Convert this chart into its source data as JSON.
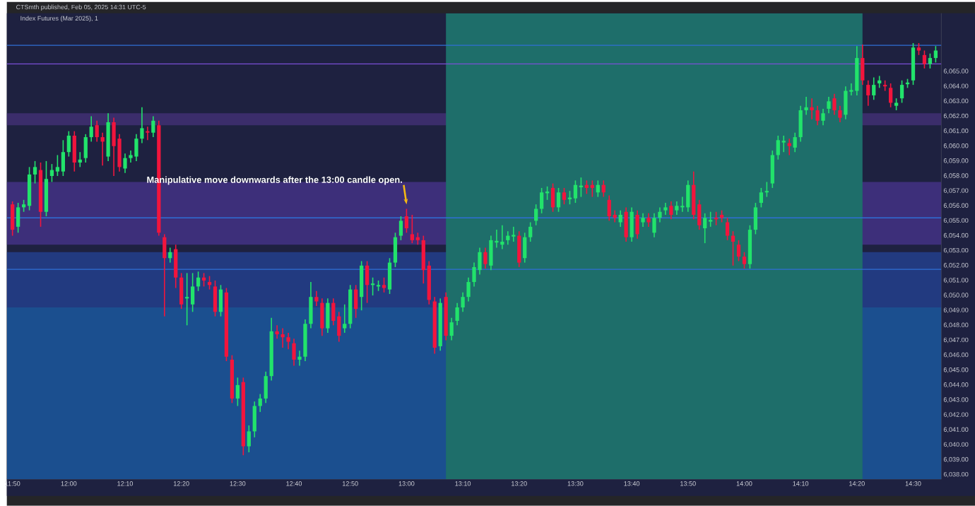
{
  "chart_data": {
    "type": "candlestick",
    "title": "CTSmth published, Feb 05, 2025 14:31 UTC-5",
    "subtitle": "Index Futures (Mar 2025), 1",
    "annotations": [
      {
        "text": "Manipulative move downwards after the 13:00 candle open.",
        "x": "2025-02-05T13:00",
        "y": 6055.8
      }
    ],
    "colors": [
      "#f2153d",
      "#22e36b",
      "#22e36b",
      "#22e36b",
      "#22e36b",
      "#f2153d",
      "#22e36b",
      "#22e36b",
      "#22e36b",
      "#22e36b",
      "#22e36b",
      "#f2153d",
      "#22e36b",
      "#22e36b",
      "#22e36b",
      "#f2153d",
      "#f2153d",
      "#22e36b",
      "#f2153d",
      "#f2153d",
      "#22e36b",
      "#22e36b",
      "#22e36b",
      "#22e36b",
      "#f2153d",
      "#22e36b",
      "#f2153d",
      "#f2153d",
      "#22e36b",
      "#f2153d",
      "#f2153d",
      "#22e36b",
      "#22e36b",
      "#22e36b",
      "#f2153d",
      "#f2153d",
      "#f2153d",
      "#22e36b",
      "#f2153d",
      "#f2153d",
      "#22e36b",
      "#f2153d",
      "#22e36b",
      "#22e36b",
      "#22e36b",
      "#22e36b",
      "#22e36b",
      "#f2153d",
      "#f2153d",
      "#f2153d",
      "#f2153d",
      "#22e36b",
      "#22e36b",
      "#22e36b",
      "#f2153d",
      "#f2153d",
      "#22e36b",
      "#f2153d",
      "#f2153d",
      "#22e36b",
      "#22e36b",
      "#f2153d",
      "#22e36b",
      "#f2153d",
      "#22e36b",
      "#22e36b",
      "#f2153d",
      "#22e36b",
      "#22e36b",
      "#22e36b",
      "#f2153d",
      "#f2153d",
      "#f2153d",
      "#f2153d",
      "#f2153d",
      "#f2153d",
      "#22e36b",
      "#f2153d",
      "#22e36b",
      "#22e36b",
      "#22e36b",
      "#22e36b",
      "#22e36b",
      "#22e36b",
      "#f2153d",
      "#22e36b",
      "#22e36b",
      "#22e36b",
      "#22e36b",
      "#22e36b",
      "#f2153d",
      "#22e36b",
      "#22e36b",
      "#22e36b",
      "#22e36b",
      "#22e36b",
      "#f2153d",
      "#22e36b",
      "#f2153d",
      "#22e36b",
      "#22e36b",
      "#22e36b",
      "#f2153d",
      "#f2153d",
      "#22e36b",
      "#f2153d",
      "#f2153d",
      "#f2153d",
      "#22e36b",
      "#f2153d",
      "#22e36b",
      "#f2153d",
      "#22e36b",
      "#f2153d",
      "#22e36b",
      "#22e36b",
      "#22e36b",
      "#f2153d",
      "#22e36b",
      "#22e36b",
      "#22e36b",
      "#f2153d",
      "#f2153d",
      "#22e36b",
      "#22e36b",
      "#f2153d",
      "#f2153d",
      "#f2153d",
      "#f2153d",
      "#f2153d",
      "#f2153d",
      "#22e36b",
      "#22e36b",
      "#22e36b",
      "#22e36b",
      "#22e36b",
      "#22e36b",
      "#22e36b",
      "#f2153d",
      "#22e36b",
      "#22e36b",
      "#22e36b",
      "#f2153d",
      "#f2153d",
      "#22e36b",
      "#22e36b",
      "#f2153d",
      "#f2153d",
      "#22e36b",
      "#22e36b",
      "#22e36b",
      "#f2153d",
      "#f2153d",
      "#22e36b",
      "#22e36b",
      "#f2153d",
      "#f2153d",
      "#22e36b",
      "#22e36b",
      "#22e36b",
      "#22e36b",
      "#f2153d",
      "#f2153d",
      "#22e36b",
      "#22e36b"
    ],
    "xlim": [
      "2025-02-05T11:49",
      "2025-02-05T14:35"
    ],
    "xticks": [
      {
        "value": "2025-02-05T11:50",
        "label": "11:50"
      },
      {
        "value": "2025-02-05T12:00",
        "label": "12:00"
      },
      {
        "value": "2025-02-05T12:10",
        "label": "12:10"
      },
      {
        "value": "2025-02-05T12:20",
        "label": "12:20"
      },
      {
        "value": "2025-02-05T12:30",
        "label": "12:30"
      },
      {
        "value": "2025-02-05T12:40",
        "label": "12:40"
      },
      {
        "value": "2025-02-05T12:50",
        "label": "12:50"
      },
      {
        "value": "2025-02-05T13:00",
        "label": "13:00"
      },
      {
        "value": "2025-02-05T13:10",
        "label": "13:10"
      },
      {
        "value": "2025-02-05T13:20",
        "label": "13:20"
      },
      {
        "value": "2025-02-05T13:30",
        "label": "13:30"
      },
      {
        "value": "2025-02-05T13:40",
        "label": "13:40"
      },
      {
        "value": "2025-02-05T13:50",
        "label": "13:50"
      },
      {
        "value": "2025-02-05T14:00",
        "label": "14:00"
      },
      {
        "value": "2025-02-05T14:10",
        "label": "14:10"
      },
      {
        "value": "2025-02-05T14:20",
        "label": "14:20"
      },
      {
        "value": "2025-02-05T14:30",
        "label": "14:30"
      }
    ],
    "ylim": [
      6037.7,
      6068.9
    ],
    "yticks": [
      {
        "value": 6038,
        "label": "6,038.00"
      },
      {
        "value": 6039,
        "label": "6,039.00"
      },
      {
        "value": 6040,
        "label": "6,040.00"
      },
      {
        "value": 6041,
        "label": "6,041.00"
      },
      {
        "value": 6042,
        "label": "6,042.00"
      },
      {
        "value": 6043,
        "label": "6,043.00"
      },
      {
        "value": 6044,
        "label": "6,044.00"
      },
      {
        "value": 6045,
        "label": "6,045.00"
      },
      {
        "value": 6046,
        "label": "6,046.00"
      },
      {
        "value": 6047,
        "label": "6,047.00"
      },
      {
        "value": 6048,
        "label": "6,048.00"
      },
      {
        "value": 6049,
        "label": "6,049.00"
      },
      {
        "value": 6050,
        "label": "6,050.00"
      },
      {
        "value": 6051,
        "label": "6,051.00"
      },
      {
        "value": 6052,
        "label": "6,052.00"
      },
      {
        "value": 6053,
        "label": "6,053.00"
      },
      {
        "value": 6054,
        "label": "6,054.00"
      },
      {
        "value": 6055,
        "label": "6,055.00"
      },
      {
        "value": 6056,
        "label": "6,056.00"
      },
      {
        "value": 6057,
        "label": "6,057.00"
      },
      {
        "value": 6058,
        "label": "6,058.00"
      },
      {
        "value": 6059,
        "label": "6,059.00"
      },
      {
        "value": 6060,
        "label": "6,060.00"
      },
      {
        "value": 6061,
        "label": "6,061.00"
      },
      {
        "value": 6062,
        "label": "6,062.00"
      },
      {
        "value": 6063,
        "label": "6,063.00"
      },
      {
        "value": 6064,
        "label": "6,064.00"
      },
      {
        "value": 6065,
        "label": "6,065.00"
      }
    ],
    "bands": [
      {
        "axis": "y",
        "from": 6037.7,
        "to": 6049.2,
        "color": "#1b4f8f"
      },
      {
        "axis": "y",
        "from": 6049.2,
        "to": 6052.9,
        "color": "#223a80"
      },
      {
        "axis": "y",
        "from": 6053.4,
        "to": 6057.6,
        "color": "#3d2f7a"
      },
      {
        "axis": "y",
        "from": 6061.4,
        "to": 6062.2,
        "color": "#3b2d6b"
      },
      {
        "axis": "x",
        "from": "2025-02-05T13:07",
        "to": "2025-02-05T14:21",
        "color": "#1e6e6a"
      }
    ],
    "ref_lines": [
      {
        "axis": "y",
        "value": 6066.75,
        "color": "#2f6fd6"
      },
      {
        "axis": "y",
        "value": 6065.5,
        "color": "#7a4fd6"
      },
      {
        "axis": "y",
        "value": 6055.2,
        "color": "#2f6fd6"
      },
      {
        "axis": "y",
        "value": 6051.75,
        "color": "#2f6fd6"
      }
    ],
    "x": [
      "2025-02-05T11:50",
      "2025-02-05T11:51",
      "2025-02-05T11:52",
      "2025-02-05T11:53",
      "2025-02-05T11:54",
      "2025-02-05T11:55",
      "2025-02-05T11:56",
      "2025-02-05T11:57",
      "2025-02-05T11:58",
      "2025-02-05T11:59",
      "2025-02-05T12:00",
      "2025-02-05T12:01",
      "2025-02-05T12:02",
      "2025-02-05T12:03",
      "2025-02-05T12:04",
      "2025-02-05T12:05",
      "2025-02-05T12:06",
      "2025-02-05T12:07",
      "2025-02-05T12:08",
      "2025-02-05T12:09",
      "2025-02-05T12:10",
      "2025-02-05T12:11",
      "2025-02-05T12:12",
      "2025-02-05T12:13",
      "2025-02-05T12:14",
      "2025-02-05T12:15",
      "2025-02-05T12:16",
      "2025-02-05T12:17",
      "2025-02-05T12:18",
      "2025-02-05T12:19",
      "2025-02-05T12:20",
      "2025-02-05T12:21",
      "2025-02-05T12:22",
      "2025-02-05T12:23",
      "2025-02-05T12:24",
      "2025-02-05T12:25",
      "2025-02-05T12:26",
      "2025-02-05T12:27",
      "2025-02-05T12:28",
      "2025-02-05T12:29",
      "2025-02-05T12:30",
      "2025-02-05T12:31",
      "2025-02-05T12:32",
      "2025-02-05T12:33",
      "2025-02-05T12:34",
      "2025-02-05T12:35",
      "2025-02-05T12:36",
      "2025-02-05T12:37",
      "2025-02-05T12:38",
      "2025-02-05T12:39",
      "2025-02-05T12:40",
      "2025-02-05T12:41",
      "2025-02-05T12:42",
      "2025-02-05T12:43",
      "2025-02-05T12:44",
      "2025-02-05T12:45",
      "2025-02-05T12:46",
      "2025-02-05T12:47",
      "2025-02-05T12:48",
      "2025-02-05T12:49",
      "2025-02-05T12:50",
      "2025-02-05T12:51",
      "2025-02-05T12:52",
      "2025-02-05T12:53",
      "2025-02-05T12:54",
      "2025-02-05T12:55",
      "2025-02-05T12:56",
      "2025-02-05T12:57",
      "2025-02-05T12:58",
      "2025-02-05T12:59",
      "2025-02-05T13:00",
      "2025-02-05T13:01",
      "2025-02-05T13:02",
      "2025-02-05T13:03",
      "2025-02-05T13:04",
      "2025-02-05T13:05",
      "2025-02-05T13:06",
      "2025-02-05T13:07",
      "2025-02-05T13:08",
      "2025-02-05T13:09",
      "2025-02-05T13:10",
      "2025-02-05T13:11",
      "2025-02-05T13:12",
      "2025-02-05T13:13",
      "2025-02-05T13:14",
      "2025-02-05T13:15",
      "2025-02-05T13:16",
      "2025-02-05T13:17",
      "2025-02-05T13:18",
      "2025-02-05T13:19",
      "2025-02-05T13:20",
      "2025-02-05T13:21",
      "2025-02-05T13:22",
      "2025-02-05T13:23",
      "2025-02-05T13:24",
      "2025-02-05T13:25",
      "2025-02-05T13:26",
      "2025-02-05T13:27",
      "2025-02-05T13:28",
      "2025-02-05T13:29",
      "2025-02-05T13:30",
      "2025-02-05T13:31",
      "2025-02-05T13:32",
      "2025-02-05T13:33",
      "2025-02-05T13:34",
      "2025-02-05T13:35",
      "2025-02-05T13:36",
      "2025-02-05T13:37",
      "2025-02-05T13:38",
      "2025-02-05T13:39",
      "2025-02-05T13:40",
      "2025-02-05T13:41",
      "2025-02-05T13:42",
      "2025-02-05T13:43",
      "2025-02-05T13:44",
      "2025-02-05T13:45",
      "2025-02-05T13:46",
      "2025-02-05T13:47",
      "2025-02-05T13:48",
      "2025-02-05T13:49",
      "2025-02-05T13:50",
      "2025-02-05T13:51",
      "2025-02-05T13:52",
      "2025-02-05T13:53",
      "2025-02-05T13:54",
      "2025-02-05T13:55",
      "2025-02-05T13:56",
      "2025-02-05T13:57",
      "2025-02-05T13:58",
      "2025-02-05T13:59",
      "2025-02-05T14:00",
      "2025-02-05T14:01",
      "2025-02-05T14:02",
      "2025-02-05T14:03",
      "2025-02-05T14:04",
      "2025-02-05T14:05",
      "2025-02-05T14:06",
      "2025-02-05T14:07",
      "2025-02-05T14:08",
      "2025-02-05T14:09",
      "2025-02-05T14:10",
      "2025-02-05T14:11",
      "2025-02-05T14:12",
      "2025-02-05T14:13",
      "2025-02-05T14:14",
      "2025-02-05T14:15",
      "2025-02-05T14:16",
      "2025-02-05T14:17",
      "2025-02-05T14:18",
      "2025-02-05T14:19",
      "2025-02-05T14:20",
      "2025-02-05T14:21",
      "2025-02-05T14:22",
      "2025-02-05T14:23",
      "2025-02-05T14:24",
      "2025-02-05T14:25",
      "2025-02-05T14:26",
      "2025-02-05T14:27",
      "2025-02-05T14:28",
      "2025-02-05T14:29",
      "2025-02-05T14:30",
      "2025-02-05T14:31",
      "2025-02-05T14:32",
      "2025-02-05T14:33",
      "2025-02-05T14:34"
    ],
    "ohlc": [
      [
        6056.1,
        6056.3,
        6054.0,
        6054.4
      ],
      [
        6054.6,
        6056.2,
        6054.2,
        6055.9
      ],
      [
        6055.9,
        6056.4,
        6055.6,
        6056.1
      ],
      [
        6056.0,
        6058.6,
        6055.7,
        6058.1
      ],
      [
        6058.1,
        6059.0,
        6057.5,
        6058.6
      ],
      [
        6058.4,
        6058.9,
        6054.6,
        6055.6
      ],
      [
        6055.6,
        6059.0,
        6055.3,
        6057.8
      ],
      [
        6058.0,
        6058.8,
        6057.6,
        6058.4
      ],
      [
        6058.3,
        6059.4,
        6058.0,
        6058.6
      ],
      [
        6058.3,
        6060.4,
        6058.0,
        6059.6
      ],
      [
        6059.6,
        6061.0,
        6059.3,
        6060.7
      ],
      [
        6060.7,
        6061.0,
        6058.3,
        6058.9
      ],
      [
        6058.9,
        6059.6,
        6058.6,
        6059.1
      ],
      [
        6059.2,
        6060.8,
        6058.9,
        6060.6
      ],
      [
        6060.6,
        6062.0,
        6060.3,
        6061.3
      ],
      [
        6061.4,
        6061.7,
        6060.3,
        6060.6
      ],
      [
        6060.6,
        6060.9,
        6058.7,
        6060.3
      ],
      [
        6059.3,
        6062.2,
        6059.0,
        6061.6
      ],
      [
        6061.6,
        6061.9,
        6058.0,
        6060.0
      ],
      [
        6060.5,
        6060.8,
        6058.3,
        6058.6
      ],
      [
        6058.5,
        6059.5,
        6058.2,
        6059.2
      ],
      [
        6059.2,
        6059.7,
        6058.9,
        6059.4
      ],
      [
        6059.3,
        6060.8,
        6059.0,
        6060.5
      ],
      [
        6060.5,
        6062.6,
        6060.2,
        6061.2
      ],
      [
        6061.0,
        6061.3,
        6060.4,
        6060.9
      ],
      [
        6060.9,
        6062.0,
        6060.6,
        6061.7
      ],
      [
        6061.4,
        6061.7,
        6054.0,
        6054.2
      ],
      [
        6053.9,
        6054.1,
        6048.6,
        6052.5
      ],
      [
        6052.5,
        6053.2,
        6052.2,
        6052.9
      ],
      [
        6053.1,
        6053.4,
        6050.5,
        6051.2
      ],
      [
        6051.2,
        6051.5,
        6049.1,
        6049.4
      ],
      [
        6049.8,
        6051.5,
        6048.0,
        6049.9
      ],
      [
        6049.4,
        6051.5,
        6048.9,
        6050.6
      ],
      [
        6050.6,
        6051.6,
        6050.3,
        6051.2
      ],
      [
        6051.2,
        6051.5,
        6050.6,
        6051.0
      ],
      [
        6050.9,
        6051.3,
        6050.4,
        6050.7
      ],
      [
        6050.6,
        6051.0,
        6048.6,
        6048.9
      ],
      [
        6048.9,
        6050.7,
        6048.6,
        6050.4
      ],
      [
        6050.2,
        6050.5,
        6045.6,
        6045.9
      ],
      [
        6045.7,
        6046.0,
        6042.8,
        6043.1
      ],
      [
        6043.1,
        6044.5,
        6042.6,
        6044.0
      ],
      [
        6044.2,
        6044.5,
        6039.3,
        6039.9
      ],
      [
        6039.9,
        6041.3,
        6039.5,
        6040.9
      ],
      [
        6040.9,
        6042.9,
        6040.5,
        6042.6
      ],
      [
        6042.6,
        6043.4,
        6042.2,
        6043.1
      ],
      [
        6043.1,
        6044.9,
        6042.8,
        6044.6
      ],
      [
        6044.6,
        6048.5,
        6044.3,
        6047.6
      ],
      [
        6047.6,
        6048.0,
        6047.1,
        6047.4
      ],
      [
        6047.4,
        6047.8,
        6046.5,
        6047.2
      ],
      [
        6047.2,
        6047.5,
        6046.4,
        6046.9
      ],
      [
        6046.8,
        6047.1,
        6045.3,
        6045.7
      ],
      [
        6045.7,
        6046.3,
        6045.3,
        6045.9
      ],
      [
        6045.9,
        6048.4,
        6045.6,
        6048.1
      ],
      [
        6048.1,
        6050.9,
        6047.8,
        6049.9
      ],
      [
        6049.9,
        6050.3,
        6049.3,
        6049.6
      ],
      [
        6049.5,
        6049.8,
        6047.3,
        6047.8
      ],
      [
        6047.8,
        6049.8,
        6047.5,
        6049.5
      ],
      [
        6049.5,
        6049.8,
        6048.0,
        6048.3
      ],
      [
        6048.6,
        6048.9,
        6046.9,
        6047.3
      ],
      [
        6047.8,
        6049.4,
        6047.5,
        6048.1
      ],
      [
        6048.1,
        6050.7,
        6047.8,
        6050.4
      ],
      [
        6050.4,
        6050.7,
        6048.5,
        6049.1
      ],
      [
        6049.9,
        6052.3,
        6049.0,
        6052.0
      ],
      [
        6052.0,
        6052.3,
        6049.5,
        6050.7
      ],
      [
        6050.7,
        6051.2,
        6050.0,
        6050.8
      ],
      [
        6050.6,
        6051.0,
        6050.3,
        6050.7
      ],
      [
        6050.7,
        6051.2,
        6050.2,
        6050.5
      ],
      [
        6050.4,
        6052.5,
        6050.1,
        6052.2
      ],
      [
        6052.2,
        6054.2,
        6051.9,
        6053.9
      ],
      [
        6054.0,
        6055.3,
        6053.7,
        6055.0
      ],
      [
        6055.3,
        6055.8,
        6054.2,
        6054.5
      ],
      [
        6054.1,
        6055.4,
        6053.5,
        6053.7
      ],
      [
        6053.9,
        6054.2,
        6053.4,
        6053.7
      ],
      [
        6053.7,
        6054.0,
        6050.8,
        6051.7
      ],
      [
        6052.0,
        6052.3,
        6049.4,
        6049.7
      ],
      [
        6049.6,
        6049.9,
        6046.1,
        6046.5
      ],
      [
        6046.6,
        6049.8,
        6046.3,
        6049.5
      ],
      [
        6049.9,
        6050.2,
        6047.0,
        6047.3
      ],
      [
        6047.3,
        6048.5,
        6047.0,
        6048.2
      ],
      [
        6048.3,
        6049.5,
        6048.0,
        6049.2
      ],
      [
        6049.2,
        6050.2,
        6048.9,
        6049.9
      ],
      [
        6049.9,
        6051.2,
        6049.6,
        6050.9
      ],
      [
        6050.9,
        6052.2,
        6050.6,
        6051.9
      ],
      [
        6051.7,
        6053.2,
        6051.4,
        6052.9
      ],
      [
        6052.9,
        6053.2,
        6051.8,
        6052.1
      ],
      [
        6052.0,
        6054.0,
        6051.7,
        6053.7
      ],
      [
        6053.6,
        6054.4,
        6053.2,
        6053.6
      ],
      [
        6053.4,
        6054.7,
        6053.1,
        6053.6
      ],
      [
        6053.7,
        6054.3,
        6053.4,
        6054.0
      ],
      [
        6054.0,
        6054.6,
        6053.6,
        6054.0
      ],
      [
        6054.0,
        6054.3,
        6051.9,
        6052.2
      ],
      [
        6052.5,
        6054.2,
        6052.2,
        6053.9
      ],
      [
        6053.9,
        6054.9,
        6053.6,
        6054.6
      ],
      [
        6055.0,
        6056.1,
        6054.7,
        6055.8
      ],
      [
        6055.8,
        6057.2,
        6055.5,
        6056.9
      ],
      [
        6056.9,
        6057.3,
        6056.4,
        6056.9
      ],
      [
        6057.2,
        6057.5,
        6055.6,
        6055.9
      ],
      [
        6055.9,
        6057.2,
        6055.6,
        6056.9
      ],
      [
        6056.9,
        6057.2,
        6056.1,
        6056.4
      ],
      [
        6056.5,
        6057.0,
        6056.1,
        6056.5
      ],
      [
        6056.5,
        6057.7,
        6056.2,
        6057.4
      ],
      [
        6057.3,
        6057.9,
        6056.6,
        6057.3
      ],
      [
        6057.4,
        6057.7,
        6056.8,
        6057.2
      ],
      [
        6057.4,
        6057.7,
        6056.6,
        6057.2
      ],
      [
        6056.9,
        6057.7,
        6056.6,
        6057.4
      ],
      [
        6057.4,
        6057.7,
        6056.6,
        6056.9
      ],
      [
        6056.4,
        6056.7,
        6055.0,
        6055.3
      ],
      [
        6055.4,
        6055.7,
        6054.9,
        6055.2
      ],
      [
        6054.9,
        6055.7,
        6054.6,
        6055.4
      ],
      [
        6055.6,
        6055.9,
        6053.6,
        6053.9
      ],
      [
        6053.9,
        6055.9,
        6053.6,
        6055.6
      ],
      [
        6055.4,
        6055.7,
        6053.8,
        6054.1
      ],
      [
        6054.9,
        6055.5,
        6054.6,
        6055.2
      ],
      [
        6055.2,
        6055.5,
        6054.6,
        6054.9
      ],
      [
        6054.2,
        6055.5,
        6053.9,
        6055.2
      ],
      [
        6055.2,
        6055.9,
        6054.9,
        6055.6
      ],
      [
        6055.7,
        6056.2,
        6055.4,
        6055.9
      ],
      [
        6056.0,
        6056.3,
        6055.1,
        6055.4
      ],
      [
        6055.7,
        6056.3,
        6055.4,
        6056.0
      ],
      [
        6055.9,
        6056.6,
        6055.6,
        6056.0
      ],
      [
        6055.9,
        6057.7,
        6055.6,
        6057.4
      ],
      [
        6057.4,
        6058.3,
        6055.1,
        6055.4
      ],
      [
        6056.1,
        6056.4,
        6054.4,
        6054.7
      ],
      [
        6054.5,
        6055.5,
        6053.5,
        6055.2
      ],
      [
        6055.0,
        6055.6,
        6054.6,
        6055.0
      ],
      [
        6055.2,
        6055.6,
        6054.7,
        6055.1
      ],
      [
        6055.4,
        6055.7,
        6054.9,
        6055.2
      ],
      [
        6054.9,
        6055.2,
        6053.7,
        6054.0
      ],
      [
        6054.0,
        6054.3,
        6052.0,
        6053.6
      ],
      [
        6053.4,
        6053.7,
        6052.3,
        6052.6
      ],
      [
        6052.6,
        6052.9,
        6051.8,
        6052.1
      ],
      [
        6052.1,
        6054.7,
        6051.8,
        6054.4
      ],
      [
        6054.4,
        6056.2,
        6054.1,
        6055.9
      ],
      [
        6056.2,
        6057.2,
        6055.9,
        6056.9
      ],
      [
        6056.9,
        6057.6,
        6056.6,
        6057.0
      ],
      [
        6057.5,
        6059.7,
        6057.2,
        6059.4
      ],
      [
        6059.4,
        6060.7,
        6059.1,
        6060.4
      ],
      [
        6060.3,
        6060.7,
        6059.6,
        6060.3
      ],
      [
        6060.2,
        6060.5,
        6059.4,
        6060.0
      ],
      [
        6059.9,
        6060.9,
        6059.6,
        6060.6
      ],
      [
        6060.6,
        6062.7,
        6060.3,
        6062.4
      ],
      [
        6062.4,
        6063.3,
        6062.1,
        6062.6
      ],
      [
        6062.6,
        6063.2,
        6061.8,
        6062.4
      ],
      [
        6062.4,
        6062.7,
        6061.4,
        6061.7
      ],
      [
        6061.7,
        6062.5,
        6061.4,
        6062.2
      ],
      [
        6062.5,
        6063.3,
        6062.2,
        6063.0
      ],
      [
        6063.2,
        6063.5,
        6062.1,
        6062.4
      ],
      [
        6062.4,
        6062.7,
        6061.6,
        6061.9
      ],
      [
        6062.1,
        6064.0,
        6061.8,
        6063.7
      ],
      [
        6063.7,
        6064.2,
        6063.4,
        6063.7
      ],
      [
        6063.7,
        6066.7,
        6063.4,
        6065.9
      ],
      [
        6065.9,
        6066.8,
        6064.1,
        6064.4
      ],
      [
        6064.1,
        6064.4,
        6062.7,
        6063.4
      ],
      [
        6063.4,
        6064.6,
        6063.1,
        6064.1
      ],
      [
        6064.2,
        6064.7,
        6063.9,
        6064.4
      ],
      [
        6064.1,
        6064.4,
        6063.7,
        6064.0
      ],
      [
        6063.9,
        6064.2,
        6062.6,
        6062.9
      ],
      [
        6062.7,
        6063.2,
        6062.4,
        6062.9
      ],
      [
        6063.2,
        6064.4,
        6062.9,
        6064.1
      ],
      [
        6064.2,
        6064.5,
        6063.9,
        6064.2
      ],
      [
        6064.4,
        6066.9,
        6064.1,
        6066.6
      ],
      [
        6066.6,
        6066.9,
        6066.1,
        6066.4
      ],
      [
        6066.1,
        6066.4,
        6065.2,
        6065.5
      ],
      [
        6065.5,
        6066.2,
        6065.2,
        6065.9
      ],
      [
        6065.9,
        6066.7,
        6065.6,
        6066.4
      ]
    ]
  }
}
